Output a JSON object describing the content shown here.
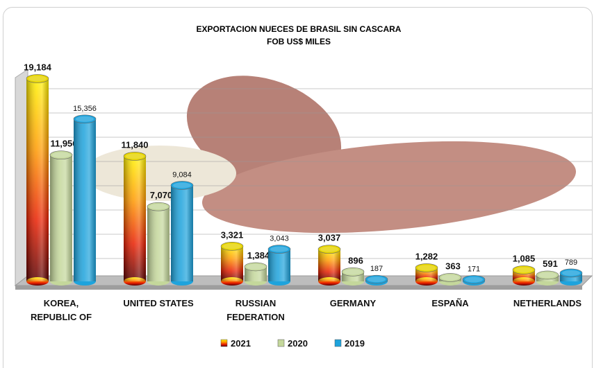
{
  "chart_data": {
    "type": "bar",
    "title": "EXPORTACION NUECES DE BRASIL SIN CASCARA",
    "subtitle": "FOB US$ MILES",
    "categories": [
      "KOREA, REPUBLIC OF",
      "UNITED STATES",
      "RUSSIAN FEDERATION",
      "GERMANY",
      "ESPAÑA",
      "NETHERLANDS"
    ],
    "series": [
      {
        "name": "2021",
        "color": "#f28a00",
        "values": [
          19184,
          11840,
          3321,
          3037,
          1282,
          1085
        ],
        "value_labels": [
          "19,184",
          "11,840",
          "3,321",
          "3,037",
          "1,282",
          "1,085"
        ]
      },
      {
        "name": "2020",
        "color": "#c4d79b",
        "values": [
          11956,
          7070,
          1384,
          896,
          363,
          591
        ],
        "value_labels": [
          "11,956",
          "7,070",
          "1,384",
          "896",
          "363",
          "591"
        ]
      },
      {
        "name": "2019",
        "color": "#1ea3dc",
        "values": [
          15356,
          9084,
          3043,
          187,
          171,
          789
        ],
        "value_labels": [
          "15,356",
          "9,084",
          "3,043",
          "187",
          "171",
          "789"
        ]
      }
    ],
    "ylim": [
      0,
      20000
    ],
    "legend": "bottom"
  }
}
